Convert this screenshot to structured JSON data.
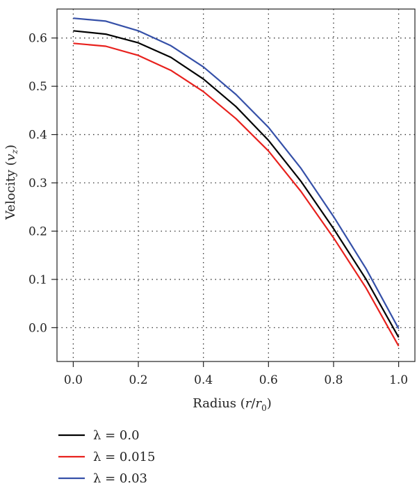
{
  "chart_data": {
    "type": "line",
    "xlabel": "Radius (r/r0)",
    "xlabel_parts": {
      "prefix": "Radius (",
      "r": "r",
      "slash": "/",
      "r0": "r",
      "sub": "0",
      "suffix": ")"
    },
    "ylabel": "Velocity (vz)",
    "ylabel_parts": {
      "prefix": "Velocity (",
      "v": "v",
      "sub": "z",
      "suffix": ")"
    },
    "xlim": [
      -0.05,
      1.05
    ],
    "ylim": [
      -0.07,
      0.66
    ],
    "x_ticks": [
      0.0,
      0.2,
      0.4,
      0.6,
      0.8,
      1.0
    ],
    "x_tick_labels": [
      "0.0",
      "0.2",
      "0.4",
      "0.6",
      "0.8",
      "1.0"
    ],
    "y_ticks": [
      0.0,
      0.1,
      0.2,
      0.3,
      0.4,
      0.5,
      0.6
    ],
    "y_tick_labels": [
      "0.0",
      "0.1",
      "0.2",
      "0.3",
      "0.4",
      "0.5",
      "0.6"
    ],
    "grid": true,
    "legend_position": "below",
    "x": [
      0.0,
      0.1,
      0.2,
      0.3,
      0.4,
      0.5,
      0.6,
      0.7,
      0.8,
      0.9,
      1.0
    ],
    "series": [
      {
        "name": "λ = 0.0",
        "color": "#000000",
        "values": [
          0.615,
          0.608,
          0.59,
          0.56,
          0.515,
          0.458,
          0.388,
          0.303,
          0.205,
          0.1,
          -0.02
        ]
      },
      {
        "name": "λ = 0.015",
        "color": "#e8211d",
        "values": [
          0.589,
          0.583,
          0.564,
          0.533,
          0.489,
          0.433,
          0.366,
          0.282,
          0.186,
          0.082,
          -0.038
        ]
      },
      {
        "name": "λ = 0.03",
        "color": "#3550a8",
        "values": [
          0.641,
          0.635,
          0.615,
          0.584,
          0.54,
          0.483,
          0.415,
          0.33,
          0.23,
          0.122,
          -0.002
        ]
      }
    ]
  }
}
